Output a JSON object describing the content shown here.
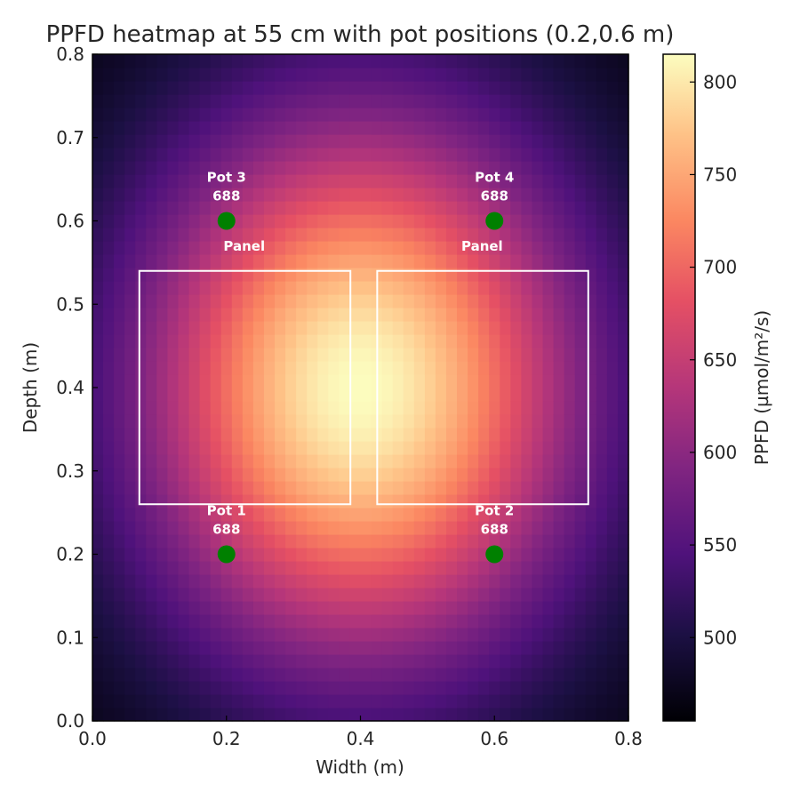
{
  "chart_data": {
    "type": "heatmap",
    "title": "PPFD heatmap at 55 cm with pot positions (0.2,0.6 m)",
    "xlabel": "Width (m)",
    "ylabel": "Depth (m)",
    "xlim": [
      0.0,
      0.8
    ],
    "ylim": [
      0.0,
      0.8
    ],
    "x_ticks": [
      "0.0",
      "0.2",
      "0.4",
      "0.6",
      "0.8"
    ],
    "y_ticks": [
      "0.0",
      "0.1",
      "0.2",
      "0.3",
      "0.4",
      "0.5",
      "0.6",
      "0.7",
      "0.8"
    ],
    "colormap": "magma",
    "colorbar": {
      "label": "PPFD (µmol/m²/s)",
      "range": [
        455,
        815
      ],
      "ticks": [
        "500",
        "550",
        "600",
        "650",
        "700",
        "750",
        "800"
      ]
    },
    "heat_field": {
      "peak_value": 815,
      "min_value": 455,
      "center": [
        0.4,
        0.4
      ],
      "grid": 50
    },
    "panels": [
      {
        "label": "Panel",
        "x0": 0.07,
        "x1": 0.385,
        "y0": 0.26,
        "y1": 0.54
      },
      {
        "label": "Panel",
        "x0": 0.425,
        "x1": 0.74,
        "y0": 0.26,
        "y1": 0.54
      }
    ],
    "pots": [
      {
        "name": "Pot 1",
        "value": "688",
        "x": 0.2,
        "y": 0.2
      },
      {
        "name": "Pot 2",
        "value": "688",
        "x": 0.6,
        "y": 0.2
      },
      {
        "name": "Pot 3",
        "value": "688",
        "x": 0.2,
        "y": 0.6
      },
      {
        "name": "Pot 4",
        "value": "688",
        "x": 0.6,
        "y": 0.6
      }
    ],
    "colors": {
      "pot_marker": "#008000",
      "panel_outline": "#ffffff",
      "text": "#262626"
    }
  }
}
